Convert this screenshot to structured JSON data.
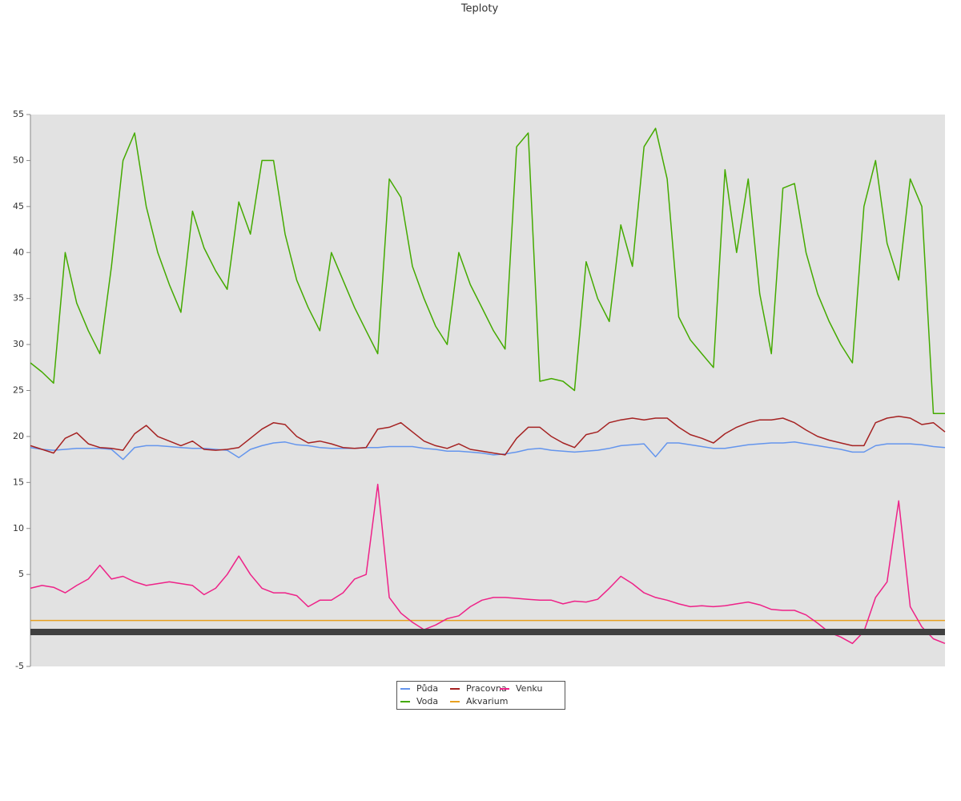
{
  "chart_data": {
    "type": "line",
    "title": "Teploty",
    "ylim": [
      -5,
      55
    ],
    "yticks": [
      -5,
      5,
      10,
      15,
      20,
      25,
      30,
      35,
      40,
      45,
      50,
      55
    ],
    "legend": "bottom",
    "series": [
      {
        "name": "Půda",
        "color": "#6495ed",
        "values": [
          18.8,
          18.6,
          18.5,
          18.6,
          18.7,
          18.7,
          18.7,
          18.6,
          17.5,
          18.8,
          19,
          19,
          18.9,
          18.8,
          18.7,
          18.7,
          18.6,
          18.5,
          17.7,
          18.6,
          19,
          19.3,
          19.4,
          19.1,
          19,
          18.8,
          18.7,
          18.7,
          18.7,
          18.8,
          18.8,
          18.9,
          18.9,
          18.9,
          18.7,
          18.6,
          18.4,
          18.4,
          18.3,
          18.2,
          18,
          18.1,
          18.3,
          18.6,
          18.7,
          18.5,
          18.4,
          18.3,
          18.4,
          18.5,
          18.7,
          19,
          19.1,
          19.2,
          17.8,
          19.3,
          19.3,
          19.1,
          18.9,
          18.7,
          18.7,
          18.9,
          19.1,
          19.2,
          19.3,
          19.3,
          19.4,
          19.2,
          19,
          18.8,
          18.6,
          18.3,
          18.3,
          19,
          19.2,
          19.2,
          19.2,
          19.1,
          18.9,
          18.8
        ]
      },
      {
        "name": "Voda",
        "color": "#44aa00",
        "values": [
          28,
          27,
          25.8,
          40,
          34.5,
          31.5,
          29,
          38.5,
          50,
          53,
          45,
          40,
          36.5,
          33.5,
          44.5,
          40.5,
          38,
          36,
          45.5,
          42,
          50,
          50,
          42,
          37,
          34,
          31.5,
          40,
          37,
          34,
          31.5,
          29,
          48,
          46,
          38.5,
          35,
          32,
          30,
          40,
          36.5,
          34,
          31.5,
          29.5,
          51.5,
          53,
          26,
          26.3,
          26,
          25,
          39,
          35,
          32.5,
          43,
          38.5,
          51.5,
          53.5,
          48,
          33,
          30.5,
          29,
          27.5,
          49,
          40,
          48,
          35.5,
          29,
          47,
          47.5,
          40,
          35.5,
          32.5,
          30,
          28,
          45,
          50,
          41,
          37,
          48,
          45,
          22.5,
          22.5
        ]
      },
      {
        "name": "Pracovna",
        "color": "#a52222",
        "values": [
          19,
          18.6,
          18.2,
          19.8,
          20.4,
          19.2,
          18.8,
          18.7,
          18.5,
          20.3,
          21.2,
          20,
          19.5,
          19,
          19.5,
          18.6,
          18.5,
          18.6,
          18.8,
          19.8,
          20.8,
          21.5,
          21.3,
          20,
          19.3,
          19.5,
          19.2,
          18.8,
          18.7,
          18.8,
          20.8,
          21,
          21.5,
          20.5,
          19.5,
          19,
          18.7,
          19.2,
          18.6,
          18.4,
          18.2,
          18,
          19.8,
          21,
          21,
          20,
          19.3,
          18.8,
          20.2,
          20.5,
          21.5,
          21.8,
          22,
          21.8,
          22,
          22,
          21,
          20.2,
          19.8,
          19.3,
          20.3,
          21,
          21.5,
          21.8,
          21.8,
          22,
          21.5,
          20.7,
          20,
          19.6,
          19.3,
          19,
          19,
          21.5,
          22,
          22.2,
          22,
          21.3,
          21.5,
          20.5
        ]
      },
      {
        "name": "Akvarium",
        "color": "#e8a020",
        "values": [
          0,
          0,
          0,
          0,
          0,
          0,
          0,
          0,
          0,
          0,
          0,
          0,
          0,
          0,
          0,
          0,
          0,
          0,
          0,
          0,
          0,
          0,
          0,
          0,
          0,
          0,
          0,
          0,
          0,
          0,
          0,
          0,
          0,
          0,
          0,
          0,
          0,
          0,
          0,
          0,
          0,
          0,
          0,
          0,
          0,
          0,
          0,
          0,
          0,
          0,
          0,
          0,
          0,
          0,
          0,
          0,
          0,
          0,
          0,
          0,
          0,
          0,
          0,
          0,
          0,
          0,
          0,
          0,
          0,
          0,
          0,
          0,
          0,
          0,
          0,
          0,
          0,
          0,
          0,
          0
        ]
      },
      {
        "name": "Venku",
        "color": "#ee2288",
        "values": [
          3.5,
          3.8,
          3.6,
          3,
          3.8,
          4.5,
          6,
          4.5,
          4.8,
          4.2,
          3.8,
          4,
          4.2,
          4,
          3.8,
          2.8,
          3.5,
          5,
          7,
          5,
          3.5,
          3,
          3,
          2.7,
          1.5,
          2.2,
          2.2,
          3,
          4.5,
          5,
          14.8,
          2.5,
          0.8,
          -0.2,
          -1,
          -0.5,
          0.2,
          0.5,
          1.5,
          2.2,
          2.5,
          2.5,
          2.4,
          2.3,
          2.2,
          2.2,
          1.8,
          2.1,
          2,
          2.3,
          3.5,
          4.8,
          4,
          3,
          2.5,
          2.2,
          1.8,
          1.5,
          1.6,
          1.5,
          1.6,
          1.8,
          2,
          1.7,
          1.2,
          1.1,
          1.1,
          0.6,
          -0.3,
          -1.3,
          -1.8,
          -2.5,
          -1.2,
          2.5,
          4.2,
          13,
          1.5,
          -0.7,
          -2,
          -2.5
        ]
      }
    ]
  }
}
